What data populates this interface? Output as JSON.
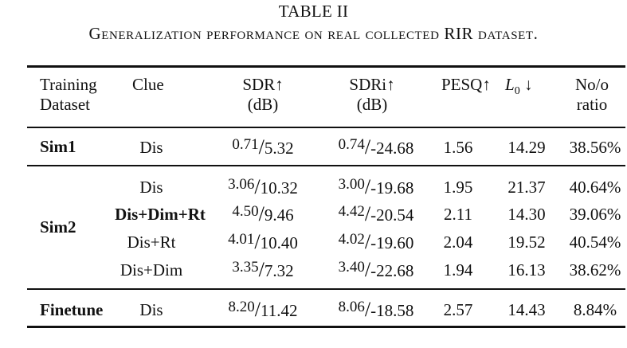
{
  "caption": {
    "number": "TABLE II",
    "title": "Generalization performance on real collected RIR dataset."
  },
  "headers": {
    "training_line1": "Training",
    "training_line2": "Dataset",
    "clue": "Clue",
    "sdr_line1": "SDR↑",
    "sdr_line2": "(dB)",
    "sdri_line1": "SDRi↑",
    "sdri_line2": "(dB)",
    "pesq": "PESQ↑",
    "l0_sym": "L",
    "l0_sub": "0",
    "l0_arrow": "↓",
    "noo_line1": "No/o",
    "noo_line2": "ratio"
  },
  "groups": {
    "sim1": "Sim1",
    "sim2": "Sim2",
    "finetune": "Finetune"
  },
  "rows": [
    {
      "clue": "Dis",
      "sdr_a": "0.71",
      "sdr_b": "5.32",
      "sdri_a": "0.74",
      "sdri_b": "-24.68",
      "pesq": "1.56",
      "l0": "14.29",
      "ratio": "38.56%"
    },
    {
      "clue": "Dis",
      "sdr_a": "3.06",
      "sdr_b": "10.32",
      "sdri_a": "3.00",
      "sdri_b": "-19.68",
      "pesq": "1.95",
      "l0": "21.37",
      "ratio": "40.64%"
    },
    {
      "clue": "Dis+Dim+Rt",
      "sdr_a": "4.50",
      "sdr_b": "9.46",
      "sdri_a": "4.42",
      "sdri_b": "-20.54",
      "pesq": "2.11",
      "l0": "14.30",
      "ratio": "39.06%"
    },
    {
      "clue": "Dis+Rt",
      "sdr_a": "4.01",
      "sdr_b": "10.40",
      "sdri_a": "4.02",
      "sdri_b": "-19.60",
      "pesq": "2.04",
      "l0": "19.52",
      "ratio": "40.54%"
    },
    {
      "clue": "Dis+Dim",
      "sdr_a": "3.35",
      "sdr_b": "7.32",
      "sdri_a": "3.40",
      "sdri_b": "-22.68",
      "pesq": "1.94",
      "l0": "16.13",
      "ratio": "38.62%"
    },
    {
      "clue": "Dis",
      "sdr_a": "8.20",
      "sdr_b": "11.42",
      "sdri_a": "8.06",
      "sdri_b": "-18.58",
      "pesq": "2.57",
      "l0": "14.43",
      "ratio": "8.84%"
    }
  ],
  "separator": "/"
}
